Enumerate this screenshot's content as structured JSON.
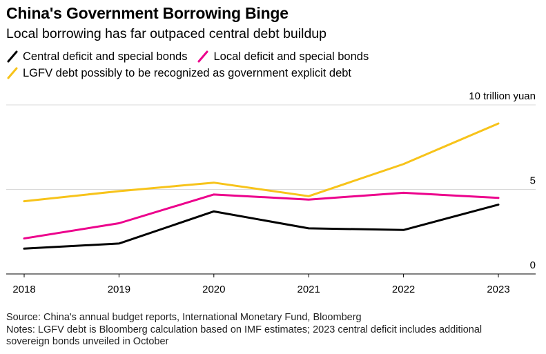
{
  "title": "China's Government Borrowing Binge",
  "subtitle": "Local borrowing has far outpaced central debt buildup",
  "colors": {
    "central": "#000000",
    "local": "#ec008c",
    "lgfv": "#f7c31a",
    "grid": "#d9d9d9"
  },
  "chart_data": {
    "type": "line",
    "categories": [
      "2018",
      "2019",
      "2020",
      "2021",
      "2022",
      "2023"
    ],
    "series": [
      {
        "key": "central",
        "name": "Central deficit and special bonds",
        "values": [
          1.5,
          1.8,
          3.7,
          2.7,
          2.6,
          4.1
        ]
      },
      {
        "key": "local",
        "name": "Local deficit and special bonds",
        "values": [
          2.1,
          3.0,
          4.7,
          4.4,
          4.8,
          4.5
        ]
      },
      {
        "key": "lgfv",
        "name": "LGFV debt possibly to be recognized as government explicit debt",
        "values": [
          4.3,
          4.9,
          5.4,
          4.6,
          6.5,
          8.9
        ]
      }
    ],
    "ylim": [
      0,
      10
    ],
    "yticks": [
      {
        "value": 10,
        "label": "10 trillion yuan"
      },
      {
        "value": 5,
        "label": "5"
      },
      {
        "value": 0,
        "label": "0"
      }
    ],
    "grid": true,
    "legend_position": "top-left"
  },
  "footer": {
    "source": "Source: China's annual budget reports, International Monetary Fund, Bloomberg",
    "notes_line1": "Notes: LGFV debt is Bloomberg calculation based on IMF estimates; 2023 central deficit includes additional",
    "notes_line2": "sovereign bonds unveiled in October"
  }
}
